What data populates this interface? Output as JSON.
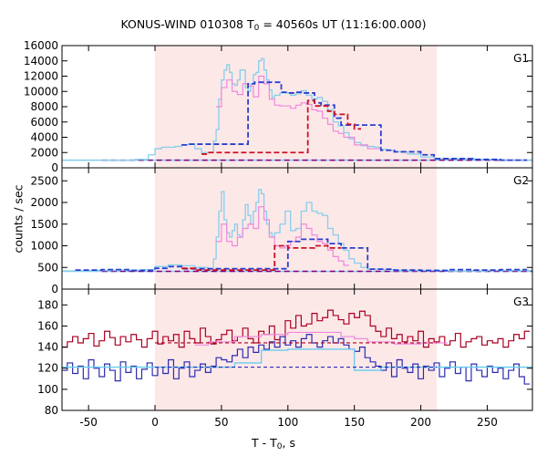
{
  "title": "KONUS-WIND 010308 T0 = 40560s UT (11:16:00.000)",
  "title_parts": {
    "pre": "KONUS-WIND 010308 T",
    "sub": "0",
    "post": " = 40560s UT (11:16:00.000)"
  },
  "xlabel_parts": {
    "pre": "T - T",
    "sub": "0",
    "post": ", s"
  },
  "ylabel": "counts / sec",
  "colors": {
    "highlight": "#fde8e8",
    "g1_light": "#87ceeb",
    "g1_dark": "#2a3fd0",
    "g1_pink": "#ee88dd",
    "g1_red": "#cc1122",
    "bg_line": "#800080",
    "g3_red": "#aa0020",
    "g3_blue": "#2b2bb0",
    "g3_light": "#66ccee",
    "g3_pink": "#ee88dd"
  },
  "chart_data": [
    {
      "type": "line",
      "panel_label": "G1",
      "xlim": [
        -70,
        284
      ],
      "ylim": [
        0,
        16000
      ],
      "xticks": [
        -50,
        0,
        50,
        100,
        150,
        200,
        250
      ],
      "yticks": [
        0,
        2000,
        4000,
        6000,
        8000,
        10000,
        12000,
        14000,
        16000
      ],
      "ytick_labels": [
        "0",
        "2000",
        "4000",
        "6000",
        "8000",
        "10000",
        "12000",
        "14000",
        "16000"
      ],
      "highlight_interval": [
        0,
        212
      ],
      "background_level": 1000,
      "series": [
        {
          "style": "light-blue histogram",
          "x": [
            -70,
            -50,
            -30,
            -15,
            -5,
            0,
            5,
            10,
            15,
            20,
            25,
            30,
            35,
            40,
            44,
            46,
            48,
            50,
            52,
            54,
            56,
            58,
            60,
            62,
            64,
            66,
            68,
            70,
            72,
            74,
            76,
            78,
            80,
            82,
            84,
            86,
            88,
            90,
            94,
            98,
            102,
            106,
            110,
            114,
            118,
            122,
            126,
            130,
            134,
            138,
            142,
            146,
            150,
            155,
            160,
            165,
            170,
            175,
            180,
            190,
            200,
            210,
            220,
            240,
            260,
            284
          ],
          "y": [
            1000,
            1000,
            1000,
            1100,
            1700,
            2500,
            2700,
            2700,
            2800,
            3000,
            3100,
            2500,
            2000,
            2000,
            3500,
            5000,
            9000,
            11500,
            12800,
            13500,
            12500,
            11000,
            10800,
            11500,
            12800,
            12800,
            10500,
            10000,
            11000,
            12200,
            12500,
            14000,
            14300,
            12800,
            11500,
            10200,
            9200,
            9500,
            9800,
            9800,
            9500,
            9700,
            10100,
            9500,
            9000,
            9200,
            8700,
            7600,
            6000,
            5500,
            4600,
            3800,
            3300,
            2900,
            2800,
            2700,
            2400,
            2300,
            2100,
            1800,
            1400,
            1200,
            1200,
            1100,
            1000,
            1000
          ]
        },
        {
          "style": "pink histogram",
          "x": [
            46,
            50,
            54,
            58,
            62,
            66,
            70,
            74,
            78,
            82,
            86,
            90,
            94,
            98,
            102,
            106,
            110,
            114,
            118,
            122,
            126,
            130,
            134,
            138,
            142,
            150,
            160
          ],
          "y": [
            8000,
            10500,
            11500,
            10000,
            9600,
            11000,
            10700,
            9300,
            12000,
            11000,
            9000,
            8200,
            8100,
            8100,
            7800,
            8200,
            8500,
            8300,
            7600,
            7400,
            6500,
            5700,
            4800,
            4500,
            4000,
            3000,
            2500
          ]
        },
        {
          "style": "dark blue segments",
          "x": [
            20,
            25,
            30,
            70,
            75,
            95,
            100,
            105,
            110,
            120,
            125,
            135,
            140,
            170,
            180,
            200,
            210,
            220,
            240,
            260
          ],
          "y": [
            3000,
            3100,
            3100,
            11000,
            11200,
            9900,
            9800,
            9900,
            9800,
            8500,
            8200,
            6500,
            5600,
            2300,
            2100,
            1700,
            1200,
            1200,
            1100,
            1000
          ]
        },
        {
          "style": "red segments",
          "x": [
            35,
            40,
            115,
            120,
            130,
            135,
            145,
            150
          ],
          "y": [
            1800,
            2000,
            8800,
            8100,
            7400,
            7000,
            5700,
            5100
          ]
        }
      ]
    },
    {
      "type": "line",
      "panel_label": "G2",
      "xlim": [
        -70,
        284
      ],
      "ylim": [
        0,
        2800
      ],
      "xticks": [
        -50,
        0,
        50,
        100,
        150,
        200,
        250
      ],
      "yticks": [
        0,
        500,
        1000,
        1500,
        2000,
        2500
      ],
      "ytick_labels": [
        "0",
        "500",
        "1000",
        "1500",
        "2000",
        "2500"
      ],
      "highlight_interval": [
        0,
        212
      ],
      "background_level": 410,
      "series": [
        {
          "style": "light-blue histogram",
          "x": [
            -70,
            -50,
            -30,
            -10,
            0,
            10,
            20,
            30,
            40,
            44,
            46,
            48,
            50,
            52,
            54,
            56,
            58,
            60,
            62,
            64,
            66,
            68,
            70,
            72,
            74,
            76,
            78,
            80,
            82,
            84,
            86,
            88,
            90,
            94,
            98,
            102,
            106,
            110,
            114,
            118,
            122,
            126,
            130,
            134,
            138,
            142,
            146,
            150,
            155,
            160,
            170,
            180,
            200,
            220,
            250,
            284
          ],
          "y": [
            420,
            430,
            440,
            450,
            520,
            560,
            540,
            500,
            460,
            700,
            1200,
            1800,
            2250,
            1600,
            1300,
            1200,
            1350,
            1500,
            1250,
            1200,
            1600,
            1950,
            1700,
            1500,
            1800,
            2000,
            2300,
            2200,
            1800,
            1500,
            1300,
            1200,
            1300,
            1500,
            1800,
            1350,
            1400,
            1800,
            2000,
            1800,
            1750,
            1700,
            1400,
            1250,
            1050,
            900,
            700,
            600,
            500,
            460,
            450,
            430,
            430,
            420,
            430,
            440
          ]
        },
        {
          "style": "pink histogram",
          "x": [
            46,
            50,
            54,
            58,
            62,
            66,
            70,
            74,
            78,
            82,
            86,
            90,
            94,
            98,
            102,
            106,
            110,
            114,
            118,
            122,
            126,
            130,
            134,
            138,
            142
          ],
          "y": [
            1100,
            1500,
            1100,
            1000,
            1200,
            1400,
            1500,
            1400,
            1900,
            1600,
            1200,
            1000,
            950,
            1000,
            1100,
            1200,
            1500,
            1400,
            1250,
            1100,
            1050,
            900,
            750,
            650,
            550
          ]
        },
        {
          "style": "dark blue segments",
          "x": [
            -60,
            -40,
            -20,
            0,
            10,
            20,
            100,
            110,
            130,
            140,
            160,
            180,
            200,
            220,
            240,
            260
          ],
          "y": [
            440,
            450,
            430,
            480,
            520,
            470,
            1100,
            1150,
            1050,
            950,
            460,
            440,
            430,
            450,
            440,
            450
          ]
        },
        {
          "style": "red segments",
          "x": [
            20,
            30,
            90,
            100,
            120,
            130
          ],
          "y": [
            480,
            440,
            1000,
            950,
            1000,
            950
          ]
        }
      ]
    },
    {
      "type": "line",
      "panel_label": "G3",
      "xlim": [
        -70,
        284
      ],
      "ylim": [
        80,
        195
      ],
      "xticks": [
        -50,
        0,
        50,
        100,
        150,
        200,
        250
      ],
      "xtick_labels": [
        "-50",
        "0",
        "50",
        "100",
        "150",
        "200",
        "250"
      ],
      "yticks": [
        80,
        100,
        120,
        140,
        160,
        180
      ],
      "ytick_labels": [
        "80",
        "100",
        "120",
        "140",
        "160",
        "180"
      ],
      "highlight_interval": [
        0,
        212
      ],
      "series": [
        {
          "style": "dark red histogram",
          "x": [
            -70,
            -66,
            -62,
            -58,
            -54,
            -50,
            -46,
            -42,
            -38,
            -34,
            -30,
            -26,
            -22,
            -18,
            -14,
            -10,
            -6,
            -2,
            2,
            6,
            10,
            14,
            18,
            22,
            26,
            30,
            34,
            38,
            42,
            46,
            50,
            54,
            58,
            62,
            66,
            70,
            74,
            78,
            82,
            86,
            90,
            94,
            98,
            102,
            106,
            110,
            114,
            118,
            122,
            126,
            130,
            134,
            138,
            142,
            146,
            150,
            154,
            158,
            162,
            166,
            170,
            174,
            178,
            182,
            186,
            190,
            194,
            198,
            202,
            206,
            210,
            214,
            218,
            222,
            226,
            230,
            234,
            238,
            242,
            246,
            250,
            254,
            258,
            262,
            266,
            270,
            274,
            278
          ],
          "y": [
            140,
            145,
            150,
            144,
            148,
            153,
            141,
            146,
            155,
            149,
            142,
            150,
            145,
            152,
            147,
            140,
            148,
            155,
            143,
            150,
            146,
            152,
            140,
            155,
            148,
            144,
            158,
            150,
            143,
            147,
            152,
            156,
            146,
            150,
            158,
            148,
            144,
            155,
            152,
            160,
            147,
            150,
            165,
            158,
            170,
            160,
            162,
            172,
            165,
            168,
            175,
            170,
            166,
            162,
            172,
            168,
            174,
            170,
            160,
            155,
            150,
            158,
            148,
            152,
            145,
            150,
            146,
            155,
            140,
            148,
            145,
            150,
            142,
            146,
            153,
            140,
            145,
            148,
            150,
            142,
            146,
            144,
            148,
            140,
            146,
            152,
            148,
            155
          ]
        },
        {
          "style": "dark blue histogram",
          "x": [
            -70,
            -66,
            -62,
            -58,
            -54,
            -50,
            -46,
            -42,
            -38,
            -34,
            -30,
            -26,
            -22,
            -18,
            -14,
            -10,
            -6,
            -2,
            2,
            6,
            10,
            14,
            18,
            22,
            26,
            30,
            34,
            38,
            42,
            46,
            50,
            54,
            58,
            62,
            66,
            70,
            74,
            78,
            82,
            86,
            90,
            94,
            98,
            102,
            106,
            110,
            114,
            118,
            122,
            126,
            130,
            134,
            138,
            142,
            146,
            150,
            154,
            158,
            162,
            166,
            170,
            174,
            178,
            182,
            186,
            190,
            194,
            198,
            202,
            206,
            210,
            214,
            218,
            222,
            226,
            230,
            234,
            238,
            242,
            246,
            250,
            254,
            258,
            262,
            266,
            270,
            274,
            278
          ],
          "y": [
            118,
            125,
            115,
            122,
            110,
            128,
            120,
            112,
            124,
            118,
            108,
            126,
            116,
            122,
            110,
            119,
            125,
            113,
            121,
            115,
            128,
            110,
            120,
            126,
            112,
            118,
            124,
            116,
            122,
            130,
            128,
            126,
            132,
            138,
            130,
            140,
            135,
            142,
            138,
            145,
            140,
            150,
            142,
            146,
            140,
            148,
            152,
            144,
            140,
            146,
            150,
            144,
            148,
            142,
            138,
            136,
            140,
            130,
            126,
            122,
            118,
            125,
            112,
            128,
            120,
            116,
            124,
            110,
            122,
            118,
            125,
            112,
            120,
            126,
            115,
            121,
            108,
            124,
            118,
            112,
            122,
            116,
            120,
            110,
            118,
            124,
            112,
            105
          ]
        },
        {
          "style": "light-blue segments",
          "x": [
            -70,
            -30,
            0,
            40,
            60,
            80,
            100,
            120,
            150,
            170,
            200,
            240,
            284
          ],
          "y": [
            121,
            121,
            121,
            121,
            125,
            137,
            138,
            138,
            118,
            121,
            121,
            121,
            121
          ]
        },
        {
          "style": "pink segments",
          "x": [
            30,
            40,
            60,
            80,
            100,
            140,
            150,
            160,
            180,
            200
          ],
          "y": [
            142,
            145,
            150,
            152,
            154,
            150,
            148,
            145,
            143,
            144
          ]
        },
        {
          "style": "dashed background",
          "x": [
            0,
            212
          ],
          "y": [
            121,
            121
          ]
        },
        {
          "style": "dashed background red",
          "x": [
            0,
            212
          ],
          "y": [
            144,
            144
          ]
        }
      ]
    }
  ]
}
